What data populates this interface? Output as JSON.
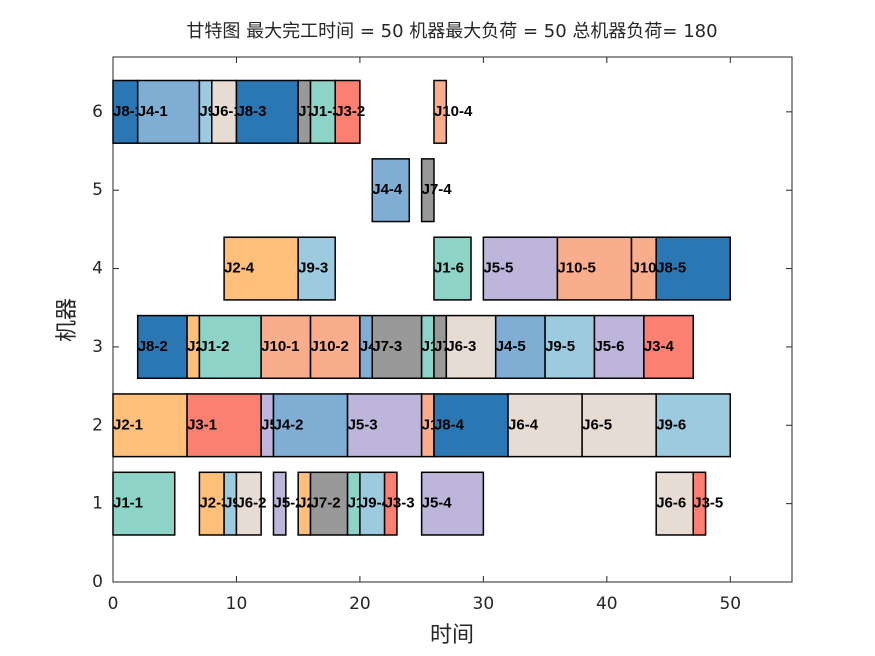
{
  "chart_data": {
    "type": "gantt",
    "title": "甘特图 最大完工时间 = 50 机器最大负荷 = 50 总机器负荷= 180",
    "xlabel": "时间",
    "ylabel": "机器",
    "xlim": [
      0,
      55
    ],
    "ylim": [
      0,
      6.7
    ],
    "xticks": [
      0,
      10,
      20,
      30,
      40,
      50
    ],
    "yticks": [
      0,
      1,
      2,
      3,
      4,
      5,
      6
    ],
    "bar_height": 0.8,
    "tasks": [
      {
        "label": "J8-1",
        "machine": 6,
        "start": 0,
        "end": 2,
        "color": "#2a77b4"
      },
      {
        "label": "J4-1",
        "machine": 6,
        "start": 2,
        "end": 7,
        "color": "#7fadd4"
      },
      {
        "label": "J9-1",
        "machine": 6,
        "start": 7,
        "end": 8,
        "color": "#9ccbe0"
      },
      {
        "label": "J6-1",
        "machine": 6,
        "start": 8,
        "end": 10,
        "color": "#e6dcd3"
      },
      {
        "label": "J8-3",
        "machine": 6,
        "start": 10,
        "end": 15,
        "color": "#2a77b4"
      },
      {
        "label": "J7-1",
        "machine": 6,
        "start": 15,
        "end": 16,
        "color": "#999999"
      },
      {
        "label": "J1-3",
        "machine": 6,
        "start": 16,
        "end": 18,
        "color": "#8dd3c7"
      },
      {
        "label": "J3-2",
        "machine": 6,
        "start": 18,
        "end": 20,
        "color": "#fb8072"
      },
      {
        "label": "J10-4",
        "machine": 6,
        "start": 26,
        "end": 27,
        "color": "#f9ad8c"
      },
      {
        "label": "J4-4",
        "machine": 5,
        "start": 21,
        "end": 24,
        "color": "#7fadd4"
      },
      {
        "label": "J7-4",
        "machine": 5,
        "start": 25,
        "end": 26,
        "color": "#999999"
      },
      {
        "label": "J2-4",
        "machine": 4,
        "start": 9,
        "end": 15,
        "color": "#fdbf7a"
      },
      {
        "label": "J9-3",
        "machine": 4,
        "start": 15,
        "end": 18,
        "color": "#9ccbe0"
      },
      {
        "label": "J1-6",
        "machine": 4,
        "start": 26,
        "end": 29,
        "color": "#8dd3c7"
      },
      {
        "label": "J5-5",
        "machine": 4,
        "start": 30,
        "end": 36,
        "color": "#bdb6da"
      },
      {
        "label": "J10-5",
        "machine": 4,
        "start": 36,
        "end": 42,
        "color": "#f9ad8c"
      },
      {
        "label": "J10-6",
        "machine": 4,
        "start": 42,
        "end": 44,
        "color": "#f9ad8c"
      },
      {
        "label": "J8-5",
        "machine": 4,
        "start": 44,
        "end": 50,
        "color": "#2a77b4"
      },
      {
        "label": "J8-2",
        "machine": 3,
        "start": 2,
        "end": 6,
        "color": "#2a77b4"
      },
      {
        "label": "J2-2",
        "machine": 3,
        "start": 6,
        "end": 7,
        "color": "#fdbf7a"
      },
      {
        "label": "J1-2",
        "machine": 3,
        "start": 7,
        "end": 12,
        "color": "#8dd3c7"
      },
      {
        "label": "J10-1",
        "machine": 3,
        "start": 12,
        "end": 16,
        "color": "#f9ad8c"
      },
      {
        "label": "J10-2",
        "machine": 3,
        "start": 16,
        "end": 20,
        "color": "#f9ad8c"
      },
      {
        "label": "J4-3",
        "machine": 3,
        "start": 20,
        "end": 21,
        "color": "#7fadd4"
      },
      {
        "label": "J7-3",
        "machine": 3,
        "start": 21,
        "end": 25,
        "color": "#999999"
      },
      {
        "label": "J1-5",
        "machine": 3,
        "start": 25,
        "end": 26,
        "color": "#8dd3c7"
      },
      {
        "label": "J7-5",
        "machine": 3,
        "start": 26,
        "end": 27,
        "color": "#999999"
      },
      {
        "label": "J6-3",
        "machine": 3,
        "start": 27,
        "end": 31,
        "color": "#e6dcd3"
      },
      {
        "label": "J4-5",
        "machine": 3,
        "start": 31,
        "end": 35,
        "color": "#7fadd4"
      },
      {
        "label": "J9-5",
        "machine": 3,
        "start": 35,
        "end": 39,
        "color": "#9ccbe0"
      },
      {
        "label": "J5-6",
        "machine": 3,
        "start": 39,
        "end": 43,
        "color": "#bdb6da"
      },
      {
        "label": "J3-4",
        "machine": 3,
        "start": 43,
        "end": 47,
        "color": "#fb8072"
      },
      {
        "label": "J2-1",
        "machine": 2,
        "start": 0,
        "end": 6,
        "color": "#fdbf7a"
      },
      {
        "label": "J3-1",
        "machine": 2,
        "start": 6,
        "end": 12,
        "color": "#fb8072"
      },
      {
        "label": "J5-1",
        "machine": 2,
        "start": 12,
        "end": 13,
        "color": "#bdb6da"
      },
      {
        "label": "J4-2",
        "machine": 2,
        "start": 13,
        "end": 19,
        "color": "#7fadd4"
      },
      {
        "label": "J5-3",
        "machine": 2,
        "start": 19,
        "end": 25,
        "color": "#bdb6da"
      },
      {
        "label": "J10-3",
        "machine": 2,
        "start": 25,
        "end": 26,
        "color": "#f9ad8c"
      },
      {
        "label": "J8-4",
        "machine": 2,
        "start": 26,
        "end": 32,
        "color": "#2a77b4"
      },
      {
        "label": "J6-4",
        "machine": 2,
        "start": 32,
        "end": 38,
        "color": "#e6dcd3"
      },
      {
        "label": "J6-5",
        "machine": 2,
        "start": 38,
        "end": 44,
        "color": "#e6dcd3"
      },
      {
        "label": "J9-6",
        "machine": 2,
        "start": 44,
        "end": 50,
        "color": "#9ccbe0"
      },
      {
        "label": "J1-1",
        "machine": 1,
        "start": 0,
        "end": 5,
        "color": "#8dd3c7"
      },
      {
        "label": "J2-3",
        "machine": 1,
        "start": 7,
        "end": 9,
        "color": "#fdbf7a"
      },
      {
        "label": "J9-2",
        "machine": 1,
        "start": 9,
        "end": 10,
        "color": "#9ccbe0"
      },
      {
        "label": "J6-2",
        "machine": 1,
        "start": 10,
        "end": 12,
        "color": "#e6dcd3"
      },
      {
        "label": "J5-2",
        "machine": 1,
        "start": 13,
        "end": 14,
        "color": "#bdb6da"
      },
      {
        "label": "J2-5",
        "machine": 1,
        "start": 15,
        "end": 16,
        "color": "#fdbf7a"
      },
      {
        "label": "J7-2",
        "machine": 1,
        "start": 16,
        "end": 19,
        "color": "#999999"
      },
      {
        "label": "J1-4",
        "machine": 1,
        "start": 19,
        "end": 20,
        "color": "#8dd3c7"
      },
      {
        "label": "J9-4",
        "machine": 1,
        "start": 20,
        "end": 22,
        "color": "#9ccbe0"
      },
      {
        "label": "J3-3",
        "machine": 1,
        "start": 22,
        "end": 23,
        "color": "#fb8072"
      },
      {
        "label": "J5-4",
        "machine": 1,
        "start": 25,
        "end": 30,
        "color": "#bdb6da"
      },
      {
        "label": "J6-6",
        "machine": 1,
        "start": 44,
        "end": 47,
        "color": "#e6dcd3"
      },
      {
        "label": "J3-5",
        "machine": 1,
        "start": 47,
        "end": 48,
        "color": "#fb8072"
      }
    ]
  }
}
